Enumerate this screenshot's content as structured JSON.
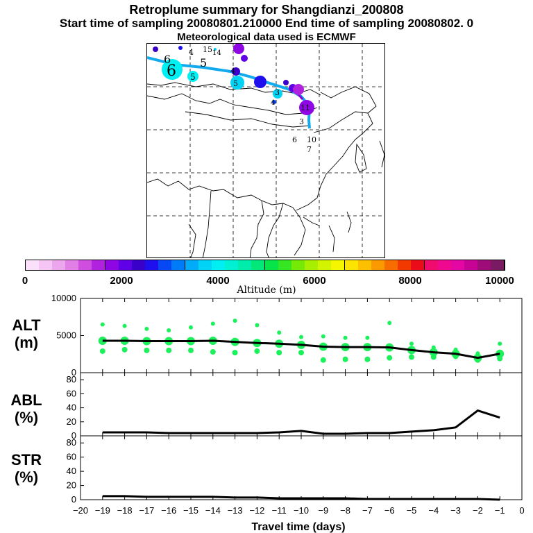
{
  "header": {
    "title": "Retroplume summary for Shangdianzi_200808",
    "subtitle": "Start time of sampling 20080801.210000     End time of sampling 20080802.     0",
    "met": "Meteorological data used is ECMWF"
  },
  "colorbar": {
    "label": "Altitude (m)",
    "ticks": [
      "0",
      "2000",
      "4000",
      "6000",
      "8000",
      "10000"
    ],
    "colors": [
      "#fbe0fb",
      "#f5c6f5",
      "#eca6ee",
      "#e27fe6",
      "#cf4ee0",
      "#b022de",
      "#8e06e3",
      "#5f00e6",
      "#3a00c9",
      "#1e10ee",
      "#0748f5",
      "#007bf7",
      "#00acf8",
      "#00d3f5",
      "#00eff2",
      "#00f0d4",
      "#00ecaa",
      "#00e87a",
      "#06e44a",
      "#37e623",
      "#74ea06",
      "#a7ee00",
      "#d2f400",
      "#f5f600",
      "#fde300",
      "#fdc000",
      "#fb9a00",
      "#f86d00",
      "#f23a00",
      "#ea0c18",
      "#f00c6f",
      "#ef0890",
      "#e407a4",
      "#c70396",
      "#9f0c7a",
      "#7a1a62"
    ]
  },
  "map": {
    "labels": [
      "6",
      "6",
      "5",
      "5",
      "4",
      "15",
      "14",
      "4",
      "5",
      "3",
      "4",
      "11",
      "3",
      "6",
      "10",
      "7"
    ]
  },
  "chart_data": [
    {
      "type": "line",
      "name": "ALT",
      "ylabel_line1": "ALT",
      "ylabel_line2": "(m)",
      "ylim": [
        0,
        10000
      ],
      "yticks": [
        "0",
        "5000",
        "10000"
      ],
      "xlim": [
        -20,
        0
      ],
      "x": [
        -19,
        -18,
        -17,
        -16,
        -15,
        -14,
        -13,
        -12,
        -11,
        -10,
        -9,
        -8,
        -7,
        -6,
        -5,
        -4,
        -3,
        -2,
        -1
      ],
      "values": [
        4300,
        4300,
        4250,
        4250,
        4250,
        4300,
        4150,
        4000,
        3900,
        3750,
        3500,
        3450,
        3450,
        3400,
        3050,
        2750,
        2550,
        2000,
        2550
      ],
      "markers_high": [
        6500,
        6300,
        5900,
        5700,
        6100,
        6600,
        7000,
        6400,
        5400,
        4800,
        4900,
        4700,
        4700,
        6700,
        3900,
        3400,
        3100,
        2600,
        3900
      ],
      "markers_low": [
        2900,
        3100,
        3000,
        3000,
        3000,
        2800,
        2700,
        2900,
        2700,
        2700,
        1700,
        1800,
        1800,
        2000,
        2100,
        2100,
        2200,
        1700,
        1900
      ]
    },
    {
      "type": "line",
      "name": "ABL",
      "ylabel_line1": "ABL",
      "ylabel_line2": "(%)",
      "ylim": [
        0,
        90
      ],
      "yticks": [
        "0",
        "20",
        "40",
        "60",
        "80"
      ],
      "xlim": [
        -20,
        0
      ],
      "x": [
        -19,
        -18,
        -17,
        -16,
        -15,
        -14,
        -13,
        -12,
        -11,
        -10,
        -9,
        -8,
        -7,
        -6,
        -5,
        -4,
        -3,
        -2,
        -1
      ],
      "values": [
        5,
        5,
        5,
        4,
        4,
        4,
        4,
        4,
        5,
        7,
        3,
        3,
        4,
        4,
        6,
        8,
        12,
        36,
        26
      ]
    },
    {
      "type": "line",
      "name": "STR",
      "ylabel_line1": "STR",
      "ylabel_line2": "(%)",
      "ylim": [
        0,
        90
      ],
      "yticks": [
        "0",
        "20",
        "40",
        "60",
        "80"
      ],
      "xlim": [
        -20,
        0
      ],
      "x": [
        -19,
        -18,
        -17,
        -16,
        -15,
        -14,
        -13,
        -12,
        -11,
        -10,
        -9,
        -8,
        -7,
        -6,
        -5,
        -4,
        -3,
        -2,
        -1
      ],
      "values": [
        5,
        5,
        4,
        4,
        4,
        4,
        3,
        3,
        2,
        2,
        2,
        2,
        1,
        1,
        1,
        1,
        1,
        1,
        0
      ],
      "xticks": [
        "−20",
        "−19",
        "−18",
        "−17",
        "−16",
        "−15",
        "−14",
        "−13",
        "−12",
        "−11",
        "−10",
        "−9",
        "−8",
        "−7",
        "−6",
        "−5",
        "−4",
        "−3",
        "−2",
        "−1",
        "0"
      ],
      "xlabel": "Travel time (days)"
    }
  ]
}
